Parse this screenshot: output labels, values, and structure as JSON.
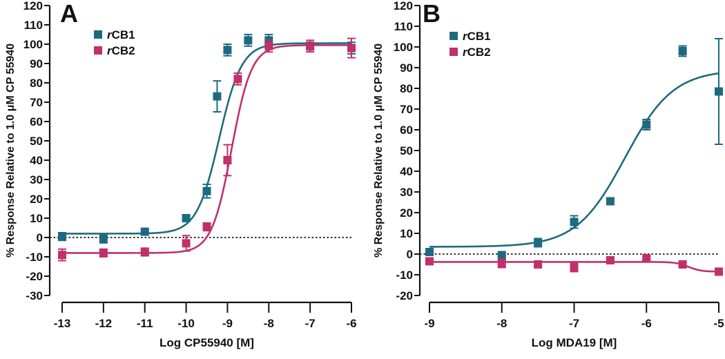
{
  "chart_data": [
    {
      "type": "scatter",
      "panel_label": "A",
      "title": "",
      "xlabel": "Log CP55940 [M]",
      "ylabel": "% Response Relative to 1.0  μM CP 55940",
      "xlim": [
        -13,
        -6
      ],
      "ylim": [
        -30,
        120
      ],
      "xticks": [
        -13,
        -12,
        -11,
        -10,
        -9,
        -8,
        -7,
        -6
      ],
      "yticks": [
        -30,
        -20,
        -10,
        0,
        10,
        20,
        30,
        40,
        50,
        60,
        70,
        80,
        90,
        100,
        110,
        120
      ],
      "xtick_labels": [
        "-13",
        "-12",
        "-11",
        "-10",
        "-9",
        "-8",
        "-7",
        "-6"
      ],
      "ytick_labels": [
        "-30",
        "-20",
        "-10",
        "0",
        "10",
        "20",
        "30",
        "40",
        "50",
        "60",
        "70",
        "80",
        "90",
        "100",
        "110",
        "120"
      ],
      "baseline": 0,
      "legend_position": "top-left",
      "series": [
        {
          "name": "rCB1",
          "italic_prefix": "r",
          "name_rest": "CB1",
          "color": "#1d6a80",
          "x": [
            -13,
            -12,
            -11,
            -10,
            -9.5,
            -9.25,
            -9,
            -8.5,
            -8,
            -7,
            -6
          ],
          "y": [
            0.5,
            -0.8,
            3,
            10,
            24,
            73,
            97,
            102,
            102,
            99,
            98
          ],
          "err": [
            2,
            2,
            1.5,
            1.5,
            3.5,
            8,
            3,
            3,
            3,
            2,
            3
          ],
          "fit": {
            "bottom": 2,
            "top": 100.5,
            "logEC50": -9.2,
            "hill": 1.6
          }
        },
        {
          "name": "rCB2",
          "italic_prefix": "r",
          "name_rest": "CB2",
          "color": "#c0306a",
          "x": [
            -13,
            -12,
            -11,
            -10,
            -9.5,
            -9,
            -8.75,
            -8,
            -7,
            -6
          ],
          "y": [
            -9,
            -8,
            -7.5,
            -3,
            5.5,
            40,
            82,
            99,
            99,
            98
          ],
          "err": [
            3,
            2,
            2,
            4,
            2,
            8,
            3,
            3,
            3,
            5
          ],
          "fit": {
            "bottom": -8,
            "top": 99.5,
            "logEC50": -8.9,
            "hill": 1.8
          }
        }
      ]
    },
    {
      "type": "scatter",
      "panel_label": "B",
      "title": "",
      "xlabel": "Log MDA19 [M]",
      "ylabel": "% Response Relative to 1.0  μM CP 55940",
      "xlim": [
        -9,
        -5
      ],
      "ylim": [
        -20,
        120
      ],
      "xticks": [
        -9,
        -8,
        -7,
        -6,
        -5
      ],
      "yticks": [
        -20,
        -10,
        0,
        10,
        20,
        30,
        40,
        50,
        60,
        70,
        80,
        90,
        100,
        110,
        120
      ],
      "xtick_labels": [
        "-9",
        "-8",
        "-7",
        "-6",
        "-5"
      ],
      "ytick_labels": [
        "-20",
        "-10",
        "0",
        "10",
        "20",
        "30",
        "40",
        "50",
        "60",
        "70",
        "80",
        "90",
        "100",
        "110",
        "120"
      ],
      "baseline": 0,
      "legend_position": "top-left",
      "series": [
        {
          "name": "rCB1",
          "italic_prefix": "r",
          "name_rest": "CB1",
          "color": "#1d6a80",
          "x": [
            -9,
            -8,
            -7.5,
            -7,
            -6.5,
            -6,
            -5.5,
            -5
          ],
          "y": [
            1,
            -0.5,
            5.5,
            15.5,
            25.5,
            62.5,
            98,
            78.5
          ],
          "err": [
            1,
            1,
            2,
            3,
            1.5,
            2.5,
            2.5,
            25.5
          ],
          "fit": {
            "bottom": 3.5,
            "top": 89,
            "logEC50": -6.3,
            "hill": 1.3
          }
        },
        {
          "name": "rCB2",
          "italic_prefix": "r",
          "name_rest": "CB2",
          "color": "#c0306a",
          "x": [
            -9,
            -8,
            -7.5,
            -7,
            -6.5,
            -6,
            -5.5,
            -5
          ],
          "y": [
            -3.5,
            -4.5,
            -5,
            -6.5,
            -3,
            -2,
            -5,
            -8.5
          ],
          "err": [
            1,
            2,
            1,
            2,
            1,
            1,
            1,
            1
          ],
          "fit": {
            "bottom": -3.8,
            "top": -8.5,
            "logEC50": -5.42,
            "hill": 5
          }
        }
      ]
    }
  ]
}
